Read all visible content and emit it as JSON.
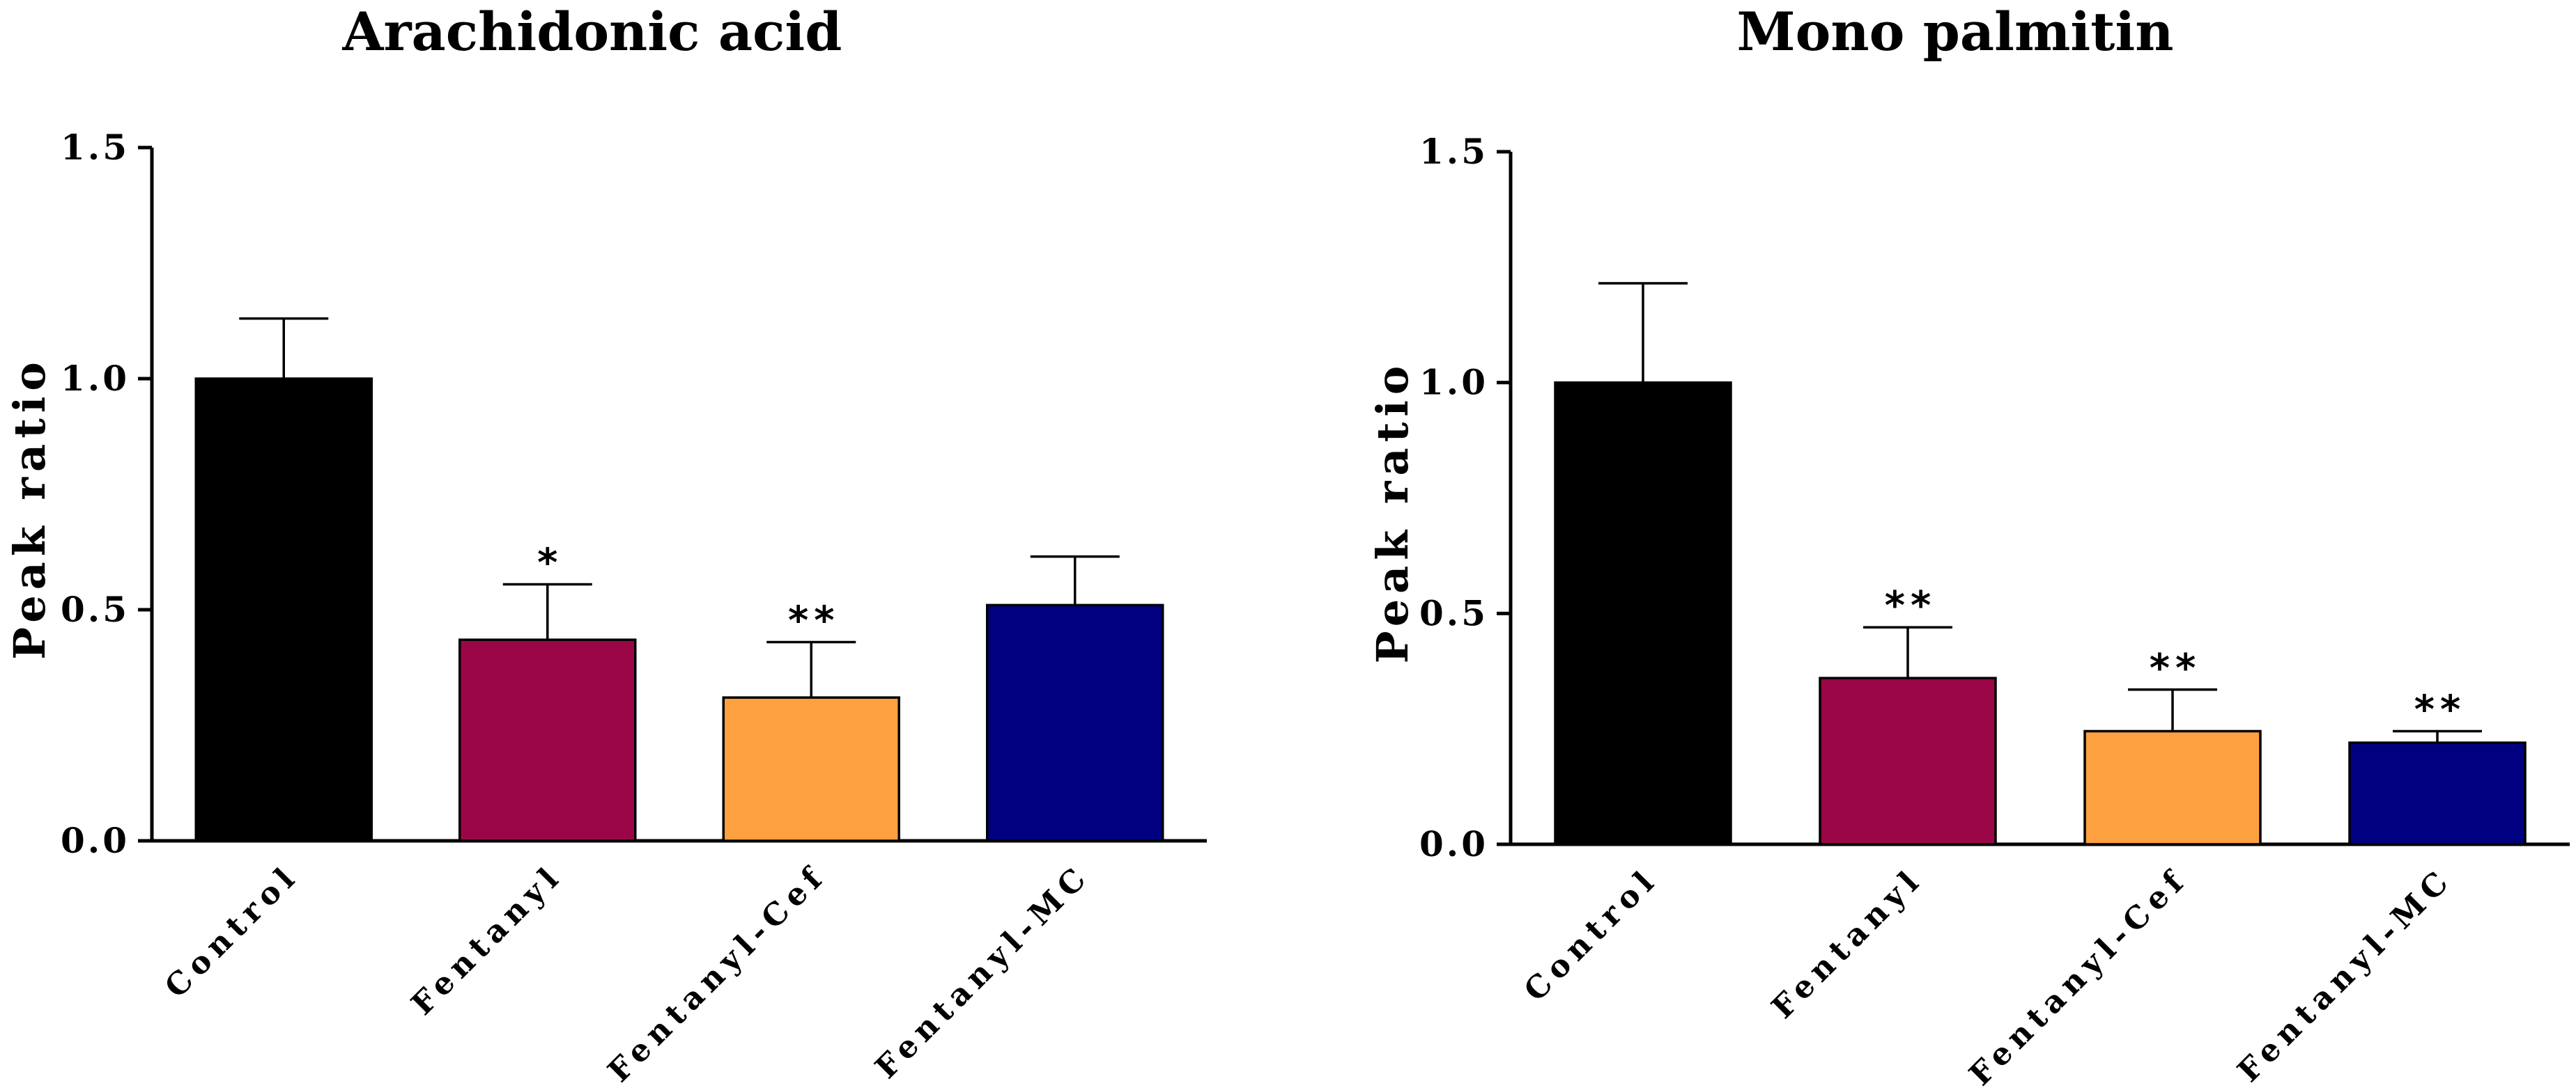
{
  "chart_data": [
    {
      "type": "bar",
      "title": "Arachidonic acid",
      "xlabel": "",
      "ylabel": "Peak ratio",
      "ylim": [
        0,
        1.5
      ],
      "yticks": [
        "0.0",
        "0.5",
        "1.0",
        "1.5"
      ],
      "grid": false,
      "categories": [
        "Control",
        "Fentanyl",
        "Fentanyl-Cef",
        "Fentanyl-MC"
      ],
      "values": [
        1.0,
        0.435,
        0.31,
        0.51
      ],
      "errors": [
        0.13,
        0.12,
        0.12,
        0.105
      ],
      "significance": [
        "",
        "*",
        "**",
        ""
      ],
      "colors": [
        "#000000",
        "#9B0646",
        "#FDA040",
        "#000080"
      ]
    },
    {
      "type": "bar",
      "title": "Mono palmitin",
      "xlabel": "",
      "ylabel": "Peak ratio",
      "ylim": [
        0,
        1.5
      ],
      "yticks": [
        "0.0",
        "0.5",
        "1.0",
        "1.5"
      ],
      "grid": false,
      "categories": [
        "Control",
        "Fentanyl",
        "Fentanyl-Cef",
        "Fentanyl-MC"
      ],
      "values": [
        1.0,
        0.36,
        0.245,
        0.22
      ],
      "errors": [
        0.215,
        0.11,
        0.09,
        0.025
      ],
      "significance": [
        "",
        "**",
        "**",
        "**"
      ],
      "colors": [
        "#000000",
        "#9B0646",
        "#FDA040",
        "#000080"
      ]
    }
  ]
}
